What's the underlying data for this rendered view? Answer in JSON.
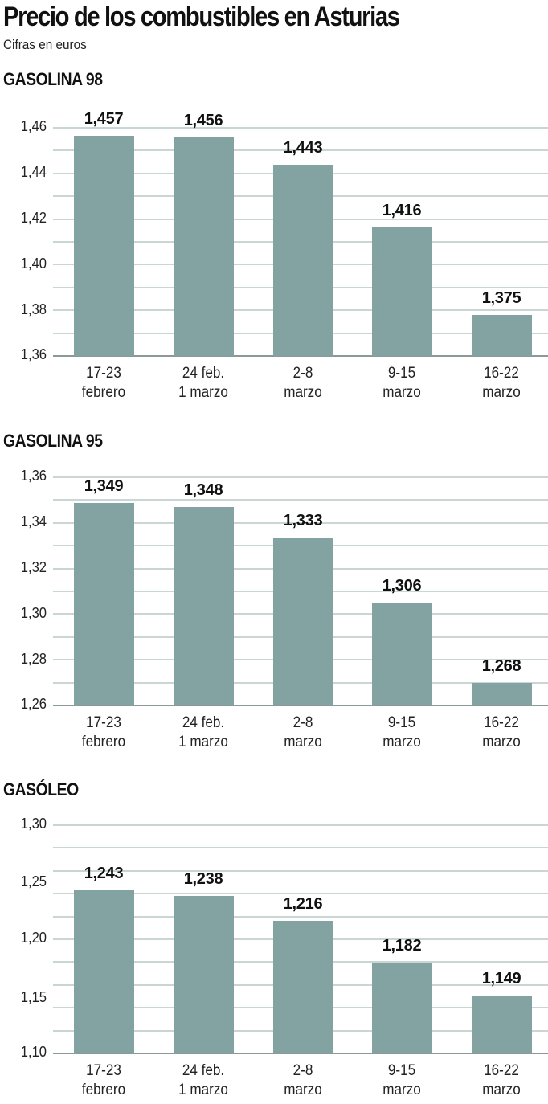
{
  "header": {
    "title": "Precio de los combustibles en Asturias",
    "subtitle": "Cifras en euros"
  },
  "colors": {
    "bar": "#82a3a1",
    "grid": "#c9d6d4",
    "text": "#111111"
  },
  "chart_data": [
    {
      "type": "bar",
      "title": "GASOLINA 98",
      "categories": [
        "17-23 febrero",
        "24 feb. 1 marzo",
        "2-8 marzo",
        "9-15 marzo",
        "16-22 marzo"
      ],
      "values": [
        1.457,
        1.456,
        1.443,
        1.416,
        1.375
      ],
      "value_labels": [
        "1,457",
        "1,456",
        "1,443",
        "1,416",
        "1,375"
      ],
      "yticks": [
        "1,46",
        "1,44",
        "1,42",
        "1,40",
        "1,38",
        "1,36"
      ],
      "ylim": [
        1.36,
        1.46
      ],
      "xlabel": "",
      "ylabel": "",
      "grid": true
    },
    {
      "type": "bar",
      "title": "GASOLINA 95",
      "categories": [
        "17-23 febrero",
        "24 feb. 1 marzo",
        "2-8 marzo",
        "9-15 marzo",
        "16-22 marzo"
      ],
      "values": [
        1.349,
        1.348,
        1.333,
        1.306,
        1.268
      ],
      "value_labels": [
        "1,349",
        "1,348",
        "1,333",
        "1,306",
        "1,268"
      ],
      "yticks": [
        "1,36",
        "1,34",
        "1,32",
        "1,30",
        "1,28",
        "1,26"
      ],
      "ylim": [
        1.26,
        1.36
      ],
      "xlabel": "",
      "ylabel": "",
      "grid": true
    },
    {
      "type": "bar",
      "title": "GASÓLEO",
      "categories": [
        "17-23 febrero",
        "24 feb. 1 marzo",
        "2-8 marzo",
        "9-15 marzo",
        "16-22 marzo"
      ],
      "values": [
        1.243,
        1.238,
        1.216,
        1.182,
        1.149
      ],
      "value_labels": [
        "1,243",
        "1,238",
        "1,216",
        "1,182",
        "1,149"
      ],
      "yticks": [
        "1,30",
        "1,25",
        "1,20",
        "1,15",
        "1,10"
      ],
      "ylim": [
        1.1,
        1.3
      ],
      "xlabel": "",
      "ylabel": "",
      "grid": true
    }
  ],
  "charts": [
    {
      "title": "GASOLINA 98",
      "yticks": [
        "1,46",
        "1,44",
        "1,42",
        "1,40",
        "1,38",
        "1,36"
      ],
      "values": [
        "1,457",
        "1,456",
        "1,443",
        "1,416",
        "1,375"
      ],
      "xlabels": [
        [
          "17-23",
          "febrero"
        ],
        [
          "24 feb.",
          "1 marzo"
        ],
        [
          "2-8",
          "marzo"
        ],
        [
          "9-15",
          "marzo"
        ],
        [
          "16-22",
          "marzo"
        ]
      ]
    },
    {
      "title": "GASOLINA 95",
      "yticks": [
        "1,36",
        "1,34",
        "1,32",
        "1,30",
        "1,28",
        "1,26"
      ],
      "values": [
        "1,349",
        "1,348",
        "1,333",
        "1,306",
        "1,268"
      ],
      "xlabels": [
        [
          "17-23",
          "febrero"
        ],
        [
          "24 feb.",
          "1 marzo"
        ],
        [
          "2-8",
          "marzo"
        ],
        [
          "9-15",
          "marzo"
        ],
        [
          "16-22",
          "marzo"
        ]
      ]
    },
    {
      "title": "GASÓLEO",
      "yticks": [
        "1,30",
        "1,25",
        "1,20",
        "1,15",
        "1,10"
      ],
      "values": [
        "1,243",
        "1,238",
        "1,216",
        "1,182",
        "1,149"
      ],
      "xlabels": [
        [
          "17-23",
          "febrero"
        ],
        [
          "24 feb.",
          "1 marzo"
        ],
        [
          "2-8",
          "marzo"
        ],
        [
          "9-15",
          "marzo"
        ],
        [
          "16-22",
          "marzo"
        ]
      ]
    }
  ]
}
